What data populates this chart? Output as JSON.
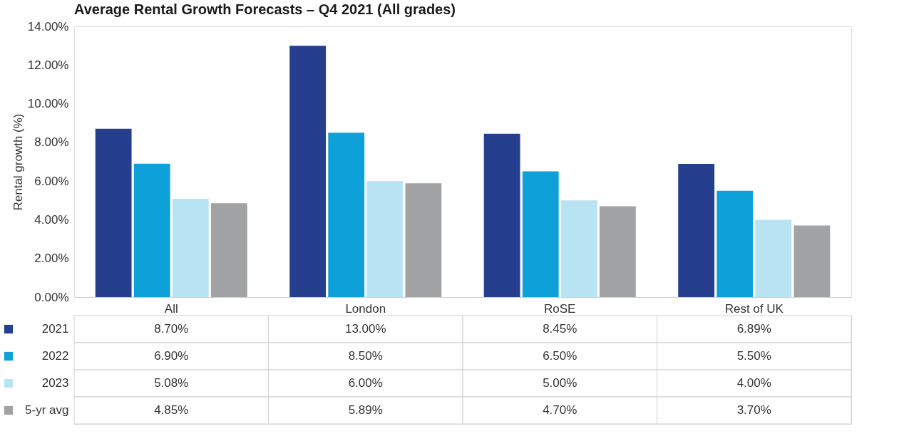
{
  "chart_data": {
    "type": "bar",
    "title": "Average Rental Growth Forecasts – Q4 2021 (All grades)",
    "ylabel": "Rental growth (%)",
    "categories": [
      "All",
      "London",
      "RoSE",
      "Rest of UK"
    ],
    "series": [
      {
        "name": "2021",
        "color": "#253f8e",
        "values": [
          8.7,
          13.0,
          8.45,
          6.89
        ],
        "value_labels": [
          "8.70%",
          "13.00%",
          "8.45%",
          "6.89%"
        ]
      },
      {
        "name": "2022",
        "color": "#0ea0d9",
        "values": [
          6.9,
          8.5,
          6.5,
          5.5
        ],
        "value_labels": [
          "6.90%",
          "8.50%",
          "6.50%",
          "5.50%"
        ]
      },
      {
        "name": "2023",
        "color": "#b8e3f3",
        "values": [
          5.08,
          6.0,
          5.0,
          4.0
        ],
        "value_labels": [
          "5.08%",
          "6.00%",
          "5.00%",
          "4.00%"
        ]
      },
      {
        "name": "5-yr avg",
        "color": "#a0a2a3",
        "values": [
          4.85,
          5.89,
          4.7,
          3.7
        ],
        "value_labels": [
          "4.85%",
          "5.89%",
          "4.70%",
          "3.70%"
        ]
      }
    ],
    "ylim": [
      0,
      14
    ],
    "yticks": [
      {
        "value": 0,
        "label": "0.00%"
      },
      {
        "value": 2,
        "label": "2.00%"
      },
      {
        "value": 4,
        "label": "4.00%"
      },
      {
        "value": 6,
        "label": "6.00%"
      },
      {
        "value": 8,
        "label": "8.00%"
      },
      {
        "value": 10,
        "label": "10.00%"
      },
      {
        "value": 12,
        "label": "12.00%"
      },
      {
        "value": 14,
        "label": "14.00%"
      }
    ],
    "grid": false,
    "legend": "bottom"
  }
}
